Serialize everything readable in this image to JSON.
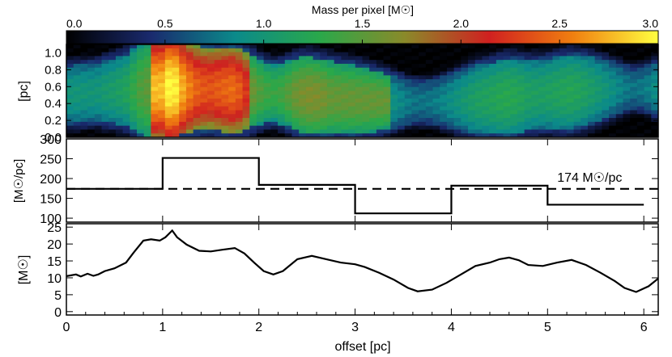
{
  "chart_data": [
    {
      "type": "heatmap",
      "panel": "mass-map",
      "colorbar": {
        "title": "Mass per pixel [M☉]",
        "range": [
          0.0,
          3.0
        ],
        "ticks": [
          "0.0",
          "0.5",
          "1.0",
          "1.5",
          "2.0",
          "2.5",
          "3.0"
        ],
        "colormap": [
          "#000000",
          "#1a2a6e",
          "#0b8a8a",
          "#2aa84a",
          "#8a8a2a",
          "#d02020",
          "#f08010",
          "#ffff40"
        ]
      },
      "ylabel": "[pc]",
      "ylim": [
        0.0,
        1.1
      ],
      "yticks": [
        0.0,
        0.2,
        0.4,
        0.6,
        0.8,
        1.0
      ],
      "ytick_labels": [
        "0.0",
        "0.2",
        "0.4",
        "0.6",
        "0.8",
        "1.0"
      ],
      "xlim": [
        0.0,
        6.15
      ],
      "description_of_structure": "filament mass per pixel map"
    },
    {
      "type": "line",
      "panel": "line-mass",
      "ylabel": "[M☉/pc]",
      "ylim": [
        90,
        300
      ],
      "yticks": [
        100,
        150,
        200,
        250,
        300
      ],
      "ytick_labels": [
        "100",
        "150",
        "200",
        "250",
        "300"
      ],
      "xlim": [
        0.0,
        6.15
      ],
      "step_edges": [
        0,
        1,
        2,
        3,
        4,
        5,
        6
      ],
      "step_values": [
        174,
        252,
        184,
        112,
        182,
        134
      ],
      "mean_value": 174,
      "mean_label": "174 M☉/pc"
    },
    {
      "type": "line",
      "panel": "mass-profile",
      "ylabel": "[M☉]",
      "xlabel": "offset [pc]",
      "ylim": [
        -1,
        26
      ],
      "yticks": [
        0,
        5,
        10,
        15,
        20,
        25
      ],
      "ytick_labels": [
        "0",
        "5",
        "10",
        "15",
        "20",
        "25"
      ],
      "xlim": [
        0.0,
        6.15
      ],
      "xticks": [
        0,
        1,
        2,
        3,
        4,
        5,
        6
      ],
      "xtick_labels": [
        "0",
        "1",
        "2",
        "3",
        "4",
        "5",
        "6"
      ],
      "x": [
        0.0,
        0.1,
        0.15,
        0.22,
        0.28,
        0.33,
        0.4,
        0.5,
        0.62,
        0.7,
        0.8,
        0.88,
        0.97,
        1.03,
        1.1,
        1.15,
        1.25,
        1.38,
        1.5,
        1.62,
        1.75,
        1.85,
        1.95,
        2.05,
        2.15,
        2.25,
        2.4,
        2.55,
        2.7,
        2.85,
        3.0,
        3.1,
        3.25,
        3.4,
        3.55,
        3.65,
        3.8,
        3.95,
        4.1,
        4.25,
        4.4,
        4.5,
        4.6,
        4.7,
        4.8,
        4.95,
        5.1,
        5.25,
        5.4,
        5.55,
        5.7,
        5.8,
        5.92,
        6.05,
        6.15
      ],
      "y": [
        10.5,
        11.0,
        10.4,
        11.2,
        10.6,
        11.0,
        12.0,
        12.8,
        14.5,
        17.5,
        21.0,
        21.4,
        21.0,
        22.0,
        24.0,
        22.0,
        19.8,
        18.0,
        17.8,
        18.3,
        18.8,
        17.2,
        14.5,
        12.0,
        11.0,
        12.0,
        15.5,
        16.5,
        15.5,
        14.5,
        14.0,
        13.2,
        11.5,
        9.5,
        7.0,
        6.0,
        6.5,
        8.5,
        11.0,
        13.5,
        14.5,
        15.5,
        16.0,
        15.2,
        13.8,
        13.5,
        14.5,
        15.3,
        13.8,
        11.5,
        9.0,
        7.0,
        5.8,
        7.5,
        9.8
      ]
    }
  ]
}
